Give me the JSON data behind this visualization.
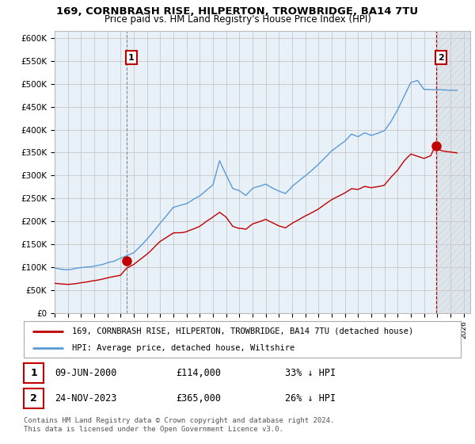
{
  "title1": "169, CORNBRASH RISE, HILPERTON, TROWBRIDGE, BA14 7TU",
  "title2": "Price paid vs. HM Land Registry's House Price Index (HPI)",
  "ylabel_ticks": [
    "£0",
    "£50K",
    "£100K",
    "£150K",
    "£200K",
    "£250K",
    "£300K",
    "£350K",
    "£400K",
    "£450K",
    "£500K",
    "£550K",
    "£600K"
  ],
  "ytick_values": [
    0,
    50000,
    100000,
    150000,
    200000,
    250000,
    300000,
    350000,
    400000,
    450000,
    500000,
    550000,
    600000
  ],
  "ylim": [
    0,
    615000
  ],
  "xlim_start": 1995.0,
  "xlim_end": 2026.5,
  "hpi_color": "#5b9bd5",
  "price_color": "#c00000",
  "marker1_x": 2000.44,
  "marker1_y": 114000,
  "marker2_x": 2023.9,
  "marker2_y": 365000,
  "legend_line1": "169, CORNBRASH RISE, HILPERTON, TROWBRIDGE, BA14 7TU (detached house)",
  "legend_line2": "HPI: Average price, detached house, Wiltshire",
  "ann1_date": "09-JUN-2000",
  "ann1_price": "£114,000",
  "ann1_hpi": "33% ↓ HPI",
  "ann2_date": "24-NOV-2023",
  "ann2_price": "£365,000",
  "ann2_hpi": "26% ↓ HPI",
  "footer": "Contains HM Land Registry data © Crown copyright and database right 2024.\nThis data is licensed under the Open Government Licence v3.0.",
  "bg_color": "#ffffff",
  "grid_color": "#cccccc",
  "plot_bg": "#ddeeff"
}
